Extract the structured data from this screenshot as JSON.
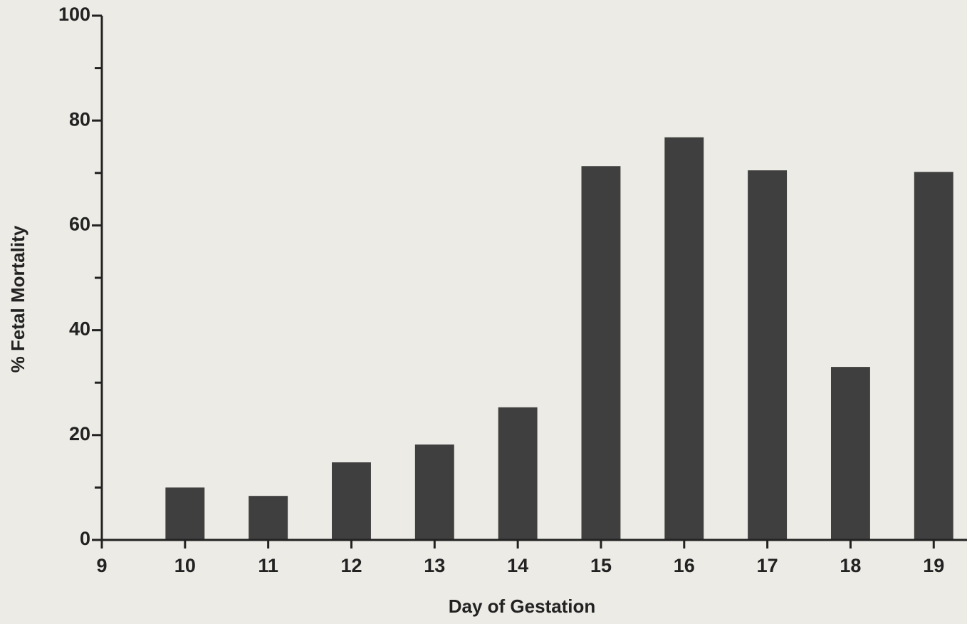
{
  "chart_data": {
    "type": "bar",
    "x": [
      10,
      11,
      12,
      13,
      14,
      15,
      16,
      17,
      18,
      19
    ],
    "values": [
      10,
      8.4,
      14.8,
      18.2,
      25.3,
      71.3,
      76.8,
      70.5,
      33,
      70.2
    ],
    "color": "#3f3f3f",
    "xlabel": "Day of Gestation",
    "ylabel": "% Fetal Mortality",
    "xlim": [
      9,
      19.4
    ],
    "xticks": [
      9,
      10,
      11,
      12,
      13,
      14,
      15,
      16,
      17,
      18,
      19
    ],
    "ylim": [
      0,
      100
    ],
    "yticks": [
      0,
      20,
      40,
      60,
      80,
      100
    ],
    "yminor_ticks": [
      10,
      30,
      50,
      70,
      90
    ],
    "grid": false
  }
}
